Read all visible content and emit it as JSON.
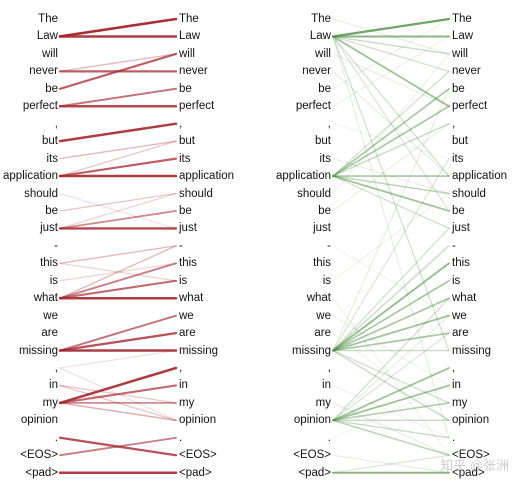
{
  "tokens": [
    "The",
    "Law",
    "will",
    "never",
    "be",
    "perfect",
    ",",
    "but",
    "its",
    "application",
    "should",
    "be",
    "just",
    "-",
    "this",
    "is",
    "what",
    "we",
    "are",
    "missing",
    ",",
    "in",
    "my",
    "opinion",
    ".",
    "<EOS>",
    "<pad>"
  ],
  "panels": [
    {
      "name": "left-panel",
      "color": "#a2252e",
      "links": [
        [
          1,
          0,
          0.9
        ],
        [
          1,
          1,
          0.85
        ],
        [
          3,
          3,
          0.7
        ],
        [
          3,
          2,
          0.3
        ],
        [
          4,
          2,
          0.7
        ],
        [
          5,
          5,
          0.8
        ],
        [
          5,
          4,
          0.6
        ],
        [
          7,
          6,
          0.85
        ],
        [
          8,
          7,
          0.3
        ],
        [
          9,
          9,
          0.85
        ],
        [
          9,
          8,
          0.7
        ],
        [
          9,
          7,
          0.25
        ],
        [
          11,
          10,
          0.25
        ],
        [
          12,
          12,
          0.8
        ],
        [
          12,
          11,
          0.5
        ],
        [
          12,
          10,
          0.2
        ],
        [
          10,
          12,
          0.15
        ],
        [
          14,
          13,
          0.3
        ],
        [
          15,
          14,
          0.2
        ],
        [
          16,
          16,
          0.85
        ],
        [
          16,
          15,
          0.65
        ],
        [
          16,
          14,
          0.55
        ],
        [
          16,
          13,
          0.3
        ],
        [
          14,
          15,
          0.2
        ],
        [
          19,
          19,
          0.85
        ],
        [
          19,
          18,
          0.75
        ],
        [
          19,
          17,
          0.6
        ],
        [
          20,
          19,
          0.15
        ],
        [
          21,
          22,
          0.25
        ],
        [
          21,
          23,
          0.25
        ],
        [
          22,
          20,
          0.85
        ],
        [
          22,
          21,
          0.65
        ],
        [
          22,
          22,
          0.5
        ],
        [
          22,
          23,
          0.35
        ],
        [
          20,
          23,
          0.15
        ],
        [
          24,
          25,
          0.75
        ],
        [
          25,
          24,
          0.55
        ],
        [
          26,
          26,
          0.85
        ]
      ]
    },
    {
      "name": "right-panel",
      "color": "#4c8b41",
      "links": [
        [
          1,
          0,
          0.75
        ],
        [
          1,
          1,
          0.6
        ],
        [
          1,
          2,
          0.3
        ],
        [
          1,
          3,
          0.25
        ],
        [
          1,
          5,
          0.5
        ],
        [
          1,
          9,
          0.25
        ],
        [
          1,
          11,
          0.2
        ],
        [
          1,
          19,
          0.25
        ],
        [
          1,
          24,
          0.15
        ],
        [
          0,
          2,
          0.15
        ],
        [
          2,
          5,
          0.15
        ],
        [
          3,
          9,
          0.15
        ],
        [
          4,
          0,
          0.12
        ],
        [
          5,
          1,
          0.12
        ],
        [
          9,
          4,
          0.45
        ],
        [
          9,
          5,
          0.45
        ],
        [
          9,
          6,
          0.3
        ],
        [
          9,
          9,
          0.45
        ],
        [
          9,
          10,
          0.35
        ],
        [
          9,
          11,
          0.5
        ],
        [
          9,
          12,
          0.25
        ],
        [
          9,
          3,
          0.25
        ],
        [
          8,
          10,
          0.15
        ],
        [
          11,
          6,
          0.15
        ],
        [
          10,
          2,
          0.12
        ],
        [
          6,
          8,
          0.1
        ],
        [
          19,
          14,
          0.55
        ],
        [
          19,
          15,
          0.45
        ],
        [
          19,
          16,
          0.45
        ],
        [
          19,
          17,
          0.5
        ],
        [
          19,
          18,
          0.45
        ],
        [
          19,
          19,
          0.3
        ],
        [
          19,
          13,
          0.3
        ],
        [
          19,
          12,
          0.25
        ],
        [
          19,
          8,
          0.2
        ],
        [
          19,
          4,
          0.15
        ],
        [
          19,
          23,
          0.3
        ],
        [
          19,
          22,
          0.25
        ],
        [
          17,
          21,
          0.12
        ],
        [
          16,
          25,
          0.12
        ],
        [
          18,
          23,
          0.1
        ],
        [
          15,
          10,
          0.12
        ],
        [
          13,
          17,
          0.1
        ],
        [
          23,
          20,
          0.5
        ],
        [
          23,
          21,
          0.5
        ],
        [
          23,
          22,
          0.4
        ],
        [
          23,
          23,
          0.3
        ],
        [
          23,
          24,
          0.3
        ],
        [
          23,
          25,
          0.35
        ],
        [
          23,
          16,
          0.25
        ],
        [
          23,
          18,
          0.2
        ],
        [
          23,
          17,
          0.15
        ],
        [
          22,
          25,
          0.15
        ],
        [
          21,
          24,
          0.12
        ],
        [
          24,
          21,
          0.1
        ],
        [
          25,
          26,
          0.15
        ],
        [
          26,
          26,
          0.6
        ],
        [
          26,
          25,
          0.2
        ]
      ]
    }
  ],
  "watermark": "知乎 @张洲"
}
